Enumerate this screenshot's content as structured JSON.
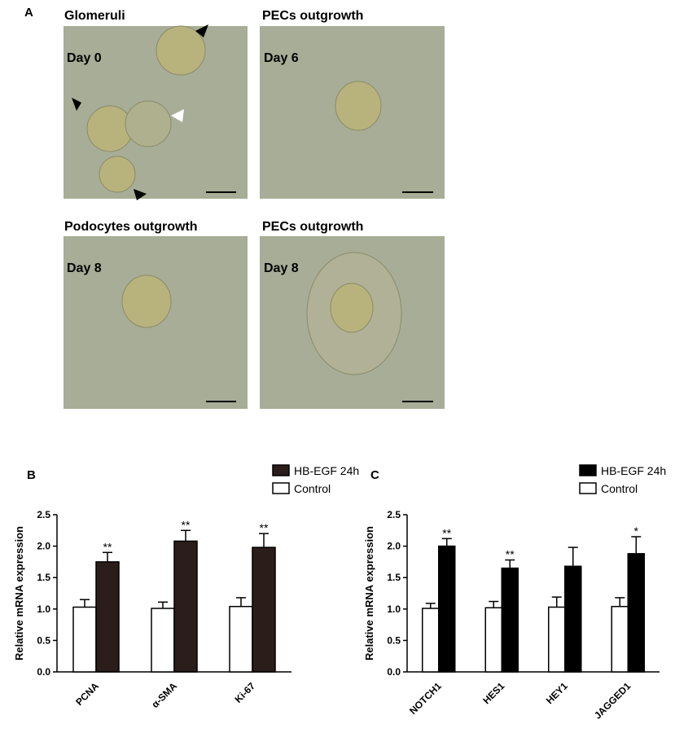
{
  "figure_a": {
    "panel_label": "A",
    "panels": [
      {
        "title": "Glomeruli",
        "day": "Day 0"
      },
      {
        "title": "PECs outgrowth",
        "day": "Day 6"
      },
      {
        "title": "Podocytes outgrowth",
        "day": "Day 8"
      },
      {
        "title": "PECs outgrowth",
        "day": "Day 8"
      }
    ]
  },
  "chart_data": [
    {
      "type": "bar",
      "panel_label": "B",
      "y_label": "Relative mRNA expression",
      "categories": [
        "PCNA",
        "α-SMA",
        "Ki-67"
      ],
      "series": [
        {
          "name": "Control",
          "color": "#ffffff",
          "values": [
            1.03,
            1.01,
            1.04
          ],
          "errors": [
            0.12,
            0.1,
            0.14
          ]
        },
        {
          "name": "HB-EGF 24h",
          "color": "#2b1d1a",
          "values": [
            1.75,
            2.08,
            1.98
          ],
          "errors": [
            0.15,
            0.17,
            0.22
          ],
          "significance": [
            "**",
            "**",
            "**"
          ]
        }
      ],
      "ylim": [
        0,
        2.5
      ],
      "yticks": [
        {
          "value": 0,
          "label": "0.0"
        },
        0.5,
        {
          "value": 1,
          "label": "1.0"
        },
        1.5,
        {
          "value": 2,
          "label": "2.0"
        },
        2.5
      ]
    },
    {
      "type": "bar",
      "panel_label": "C",
      "y_label": "Relative mRNA expression",
      "categories": [
        "NOTCH1",
        "HES1",
        "HEY1",
        "JAGGED1"
      ],
      "series": [
        {
          "name": "Control",
          "color": "#ffffff",
          "values": [
            1.01,
            1.02,
            1.03,
            1.04
          ],
          "errors": [
            0.08,
            0.1,
            0.16,
            0.14
          ]
        },
        {
          "name": "HB-EGF 24h",
          "color": "#000000",
          "values": [
            2.0,
            1.65,
            1.68,
            1.88
          ],
          "errors": [
            0.12,
            0.13,
            0.3,
            0.27
          ],
          "significance": [
            "**",
            "**",
            null,
            "*"
          ]
        }
      ],
      "ylim": [
        0,
        2.5
      ],
      "yticks": [
        {
          "value": 0,
          "label": "0.0"
        },
        0.5,
        {
          "value": 1,
          "label": "1.0"
        },
        1.5,
        {
          "value": 2,
          "label": "2.0"
        },
        2.5
      ]
    }
  ]
}
